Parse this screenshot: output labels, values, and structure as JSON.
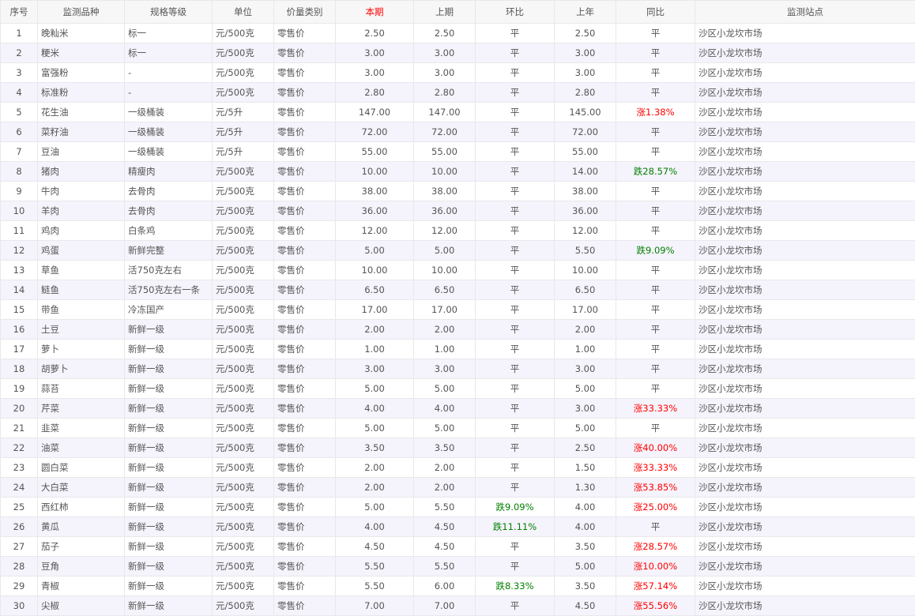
{
  "colors": {
    "up": "#ff0000",
    "down": "#008000",
    "current_header": "#ff0000",
    "alt_row": "#f5f3fb"
  },
  "headers": [
    "序号",
    "监测品种",
    "规格等级",
    "单位",
    "价量类别",
    "本期",
    "上期",
    "环比",
    "上年",
    "同比",
    "监测站点"
  ],
  "rows": [
    [
      "1",
      "晚籼米",
      "标一",
      "元/500克",
      "零售价",
      "2.50",
      "2.50",
      "平",
      "2.50",
      "平",
      "沙区小龙坎市场"
    ],
    [
      "2",
      "粳米",
      "标一",
      "元/500克",
      "零售价",
      "3.00",
      "3.00",
      "平",
      "3.00",
      "平",
      "沙区小龙坎市场"
    ],
    [
      "3",
      "富强粉",
      "-",
      "元/500克",
      "零售价",
      "3.00",
      "3.00",
      "平",
      "3.00",
      "平",
      "沙区小龙坎市场"
    ],
    [
      "4",
      "标准粉",
      "-",
      "元/500克",
      "零售价",
      "2.80",
      "2.80",
      "平",
      "2.80",
      "平",
      "沙区小龙坎市场"
    ],
    [
      "5",
      "花生油",
      "一级桶装",
      "元/5升",
      "零售价",
      "147.00",
      "147.00",
      "平",
      "145.00",
      "涨1.38%",
      "沙区小龙坎市场"
    ],
    [
      "6",
      "菜籽油",
      "一级桶装",
      "元/5升",
      "零售价",
      "72.00",
      "72.00",
      "平",
      "72.00",
      "平",
      "沙区小龙坎市场"
    ],
    [
      "7",
      "豆油",
      "一级桶装",
      "元/5升",
      "零售价",
      "55.00",
      "55.00",
      "平",
      "55.00",
      "平",
      "沙区小龙坎市场"
    ],
    [
      "8",
      "猪肉",
      "精瘦肉",
      "元/500克",
      "零售价",
      "10.00",
      "10.00",
      "平",
      "14.00",
      "跌28.57%",
      "沙区小龙坎市场"
    ],
    [
      "9",
      "牛肉",
      "去骨肉",
      "元/500克",
      "零售价",
      "38.00",
      "38.00",
      "平",
      "38.00",
      "平",
      "沙区小龙坎市场"
    ],
    [
      "10",
      "羊肉",
      "去骨肉",
      "元/500克",
      "零售价",
      "36.00",
      "36.00",
      "平",
      "36.00",
      "平",
      "沙区小龙坎市场"
    ],
    [
      "11",
      "鸡肉",
      "白条鸡",
      "元/500克",
      "零售价",
      "12.00",
      "12.00",
      "平",
      "12.00",
      "平",
      "沙区小龙坎市场"
    ],
    [
      "12",
      "鸡蛋",
      "新鲜完整",
      "元/500克",
      "零售价",
      "5.00",
      "5.00",
      "平",
      "5.50",
      "跌9.09%",
      "沙区小龙坎市场"
    ],
    [
      "13",
      "草鱼",
      "活750克左右",
      "元/500克",
      "零售价",
      "10.00",
      "10.00",
      "平",
      "10.00",
      "平",
      "沙区小龙坎市场"
    ],
    [
      "14",
      "鲢鱼",
      "活750克左右一条",
      "元/500克",
      "零售价",
      "6.50",
      "6.50",
      "平",
      "6.50",
      "平",
      "沙区小龙坎市场"
    ],
    [
      "15",
      "带鱼",
      "冷冻国产",
      "元/500克",
      "零售价",
      "17.00",
      "17.00",
      "平",
      "17.00",
      "平",
      "沙区小龙坎市场"
    ],
    [
      "16",
      "土豆",
      "新鲜一级",
      "元/500克",
      "零售价",
      "2.00",
      "2.00",
      "平",
      "2.00",
      "平",
      "沙区小龙坎市场"
    ],
    [
      "17",
      "萝卜",
      "新鲜一级",
      "元/500克",
      "零售价",
      "1.00",
      "1.00",
      "平",
      "1.00",
      "平",
      "沙区小龙坎市场"
    ],
    [
      "18",
      "胡萝卜",
      "新鲜一级",
      "元/500克",
      "零售价",
      "3.00",
      "3.00",
      "平",
      "3.00",
      "平",
      "沙区小龙坎市场"
    ],
    [
      "19",
      "蒜苔",
      "新鲜一级",
      "元/500克",
      "零售价",
      "5.00",
      "5.00",
      "平",
      "5.00",
      "平",
      "沙区小龙坎市场"
    ],
    [
      "20",
      "芹菜",
      "新鲜一级",
      "元/500克",
      "零售价",
      "4.00",
      "4.00",
      "平",
      "3.00",
      "涨33.33%",
      "沙区小龙坎市场"
    ],
    [
      "21",
      "韭菜",
      "新鲜一级",
      "元/500克",
      "零售价",
      "5.00",
      "5.00",
      "平",
      "5.00",
      "平",
      "沙区小龙坎市场"
    ],
    [
      "22",
      "油菜",
      "新鲜一级",
      "元/500克",
      "零售价",
      "3.50",
      "3.50",
      "平",
      "2.50",
      "涨40.00%",
      "沙区小龙坎市场"
    ],
    [
      "23",
      "圆白菜",
      "新鲜一级",
      "元/500克",
      "零售价",
      "2.00",
      "2.00",
      "平",
      "1.50",
      "涨33.33%",
      "沙区小龙坎市场"
    ],
    [
      "24",
      "大白菜",
      "新鲜一级",
      "元/500克",
      "零售价",
      "2.00",
      "2.00",
      "平",
      "1.30",
      "涨53.85%",
      "沙区小龙坎市场"
    ],
    [
      "25",
      "西红柿",
      "新鲜一级",
      "元/500克",
      "零售价",
      "5.00",
      "5.50",
      "跌9.09%",
      "4.00",
      "涨25.00%",
      "沙区小龙坎市场"
    ],
    [
      "26",
      "黄瓜",
      "新鲜一级",
      "元/500克",
      "零售价",
      "4.00",
      "4.50",
      "跌11.11%",
      "4.00",
      "平",
      "沙区小龙坎市场"
    ],
    [
      "27",
      "茄子",
      "新鲜一级",
      "元/500克",
      "零售价",
      "4.50",
      "4.50",
      "平",
      "3.50",
      "涨28.57%",
      "沙区小龙坎市场"
    ],
    [
      "28",
      "豆角",
      "新鲜一级",
      "元/500克",
      "零售价",
      "5.50",
      "5.50",
      "平",
      "5.00",
      "涨10.00%",
      "沙区小龙坎市场"
    ],
    [
      "29",
      "青椒",
      "新鲜一级",
      "元/500克",
      "零售价",
      "5.50",
      "6.00",
      "跌8.33%",
      "3.50",
      "涨57.14%",
      "沙区小龙坎市场"
    ],
    [
      "30",
      "尖椒",
      "新鲜一级",
      "元/500克",
      "零售价",
      "7.00",
      "7.00",
      "平",
      "4.50",
      "涨55.56%",
      "沙区小龙坎市场"
    ]
  ]
}
